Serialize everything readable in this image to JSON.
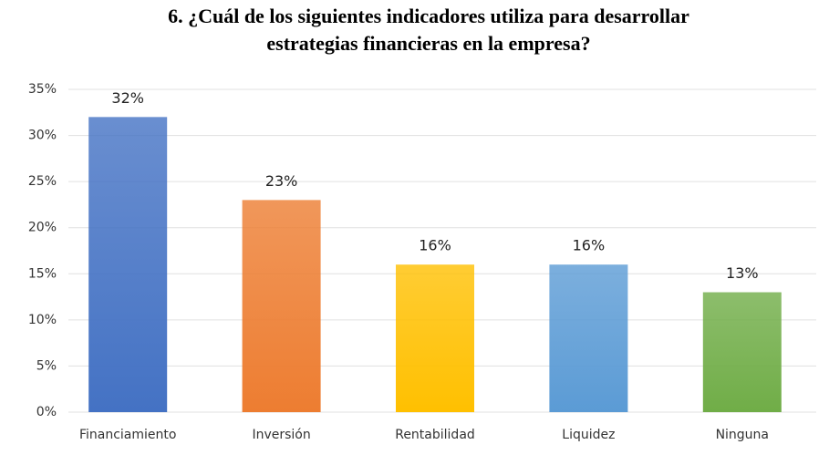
{
  "chart_data": {
    "type": "bar",
    "title": [
      "6. ¿Cuál de los siguientes indicadores utiliza para desarrollar",
      "estrategias financieras en la empresa?"
    ],
    "categories": [
      "Financiamiento",
      "Inversión",
      "Rentabilidad",
      "Liquidez",
      "Ninguna"
    ],
    "values": [
      32,
      23,
      16,
      16,
      13
    ],
    "value_labels": [
      "32%",
      "23%",
      "16%",
      "16%",
      "13%"
    ],
    "colors": [
      "#4472c4",
      "#ed7d31",
      "#ffc000",
      "#5b9bd5",
      "#70ad47"
    ],
    "ylim": [
      0,
      35
    ],
    "yticks": [
      {
        "value": 0,
        "label": "0%"
      },
      {
        "value": 5,
        "label": "5%"
      },
      {
        "value": 10,
        "label": "10%"
      },
      {
        "value": 15,
        "label": "15%"
      },
      {
        "value": 20,
        "label": "20%"
      },
      {
        "value": 25,
        "label": "25%"
      },
      {
        "value": 30,
        "label": "30%"
      },
      {
        "value": 35,
        "label": "35%"
      }
    ],
    "grid": true
  }
}
